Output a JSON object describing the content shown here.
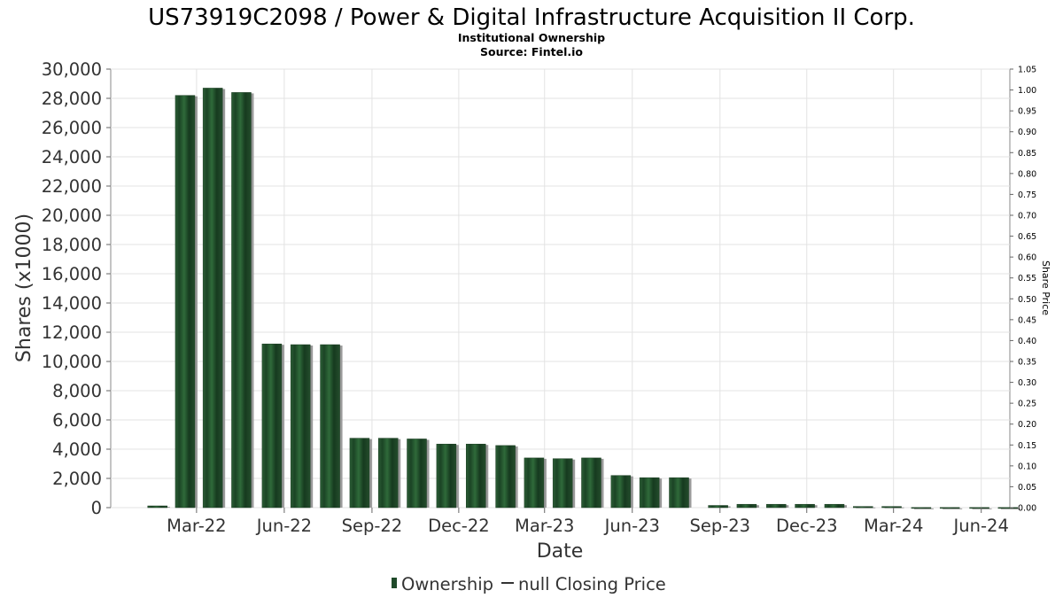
{
  "chart_data": {
    "type": "bar",
    "title": "US73919C2098 / Power & Digital Infrastructure Acquisition II Corp.",
    "subtitle_lines": [
      "Institutional Ownership",
      "Source: Fintel.io"
    ],
    "xlabel": "Date",
    "ylabel": "Shares (x1000)",
    "y2label": "Share Price",
    "x_range": [
      "2021-12-01",
      "2024-07-01"
    ],
    "ylim": [
      0,
      30000
    ],
    "y_ticks": [
      0,
      2000,
      4000,
      6000,
      8000,
      10000,
      12000,
      14000,
      16000,
      18000,
      20000,
      22000,
      24000,
      26000,
      28000,
      30000
    ],
    "y_tick_labels": [
      "0",
      "2,000",
      "4,000",
      "6,000",
      "8,000",
      "10,000",
      "12,000",
      "14,000",
      "16,000",
      "18,000",
      "20,000",
      "22,000",
      "24,000",
      "26,000",
      "28,000",
      "30,000"
    ],
    "y2lim": [
      0,
      1.05
    ],
    "y2_tick_labels": [
      "0.00",
      "0.05",
      "0.10",
      "0.15",
      "0.20",
      "0.25",
      "0.30",
      "0.35",
      "0.40",
      "0.45",
      "0.50",
      "0.55",
      "0.60",
      "0.65",
      "0.70",
      "0.75",
      "0.80",
      "0.85",
      "0.90",
      "0.95",
      "1.00",
      "1.05"
    ],
    "x_ticks": [
      {
        "date": "2022-03-01",
        "label": "Mar-22"
      },
      {
        "date": "2022-06-01",
        "label": "Jun-22"
      },
      {
        "date": "2022-09-01",
        "label": "Sep-22"
      },
      {
        "date": "2022-12-01",
        "label": "Dec-22"
      },
      {
        "date": "2023-03-01",
        "label": "Mar-23"
      },
      {
        "date": "2023-06-01",
        "label": "Jun-23"
      },
      {
        "date": "2023-09-01",
        "label": "Sep-23"
      },
      {
        "date": "2023-12-01",
        "label": "Dec-23"
      },
      {
        "date": "2024-03-01",
        "label": "Mar-24"
      },
      {
        "date": "2024-06-01",
        "label": "Jun-24"
      }
    ],
    "series": [
      {
        "name": "Ownership",
        "kind": "bar",
        "color": "#1f4a2a",
        "points": [
          {
            "date": "2022-01-19",
            "value": 120
          },
          {
            "date": "2022-02-17",
            "value": 28200
          },
          {
            "date": "2022-03-18",
            "value": 28700
          },
          {
            "date": "2022-04-17",
            "value": 28400
          },
          {
            "date": "2022-05-19",
            "value": 11200
          },
          {
            "date": "2022-06-18",
            "value": 11150
          },
          {
            "date": "2022-07-19",
            "value": 11150
          },
          {
            "date": "2022-08-19",
            "value": 4750
          },
          {
            "date": "2022-09-18",
            "value": 4750
          },
          {
            "date": "2022-10-18",
            "value": 4700
          },
          {
            "date": "2022-11-18",
            "value": 4350
          },
          {
            "date": "2022-12-19",
            "value": 4350
          },
          {
            "date": "2023-01-19",
            "value": 4250
          },
          {
            "date": "2023-02-18",
            "value": 3400
          },
          {
            "date": "2023-03-20",
            "value": 3350
          },
          {
            "date": "2023-04-19",
            "value": 3400
          },
          {
            "date": "2023-05-20",
            "value": 2200
          },
          {
            "date": "2023-06-19",
            "value": 2050
          },
          {
            "date": "2023-07-20",
            "value": 2050
          },
          {
            "date": "2023-08-30",
            "value": 150
          },
          {
            "date": "2023-09-29",
            "value": 230
          },
          {
            "date": "2023-10-30",
            "value": 230
          },
          {
            "date": "2023-11-29",
            "value": 230
          },
          {
            "date": "2023-12-30",
            "value": 230
          },
          {
            "date": "2024-01-29",
            "value": 80
          },
          {
            "date": "2024-02-28",
            "value": 80
          },
          {
            "date": "2024-03-30",
            "value": 10
          },
          {
            "date": "2024-04-29",
            "value": 10
          },
          {
            "date": "2024-05-30",
            "value": 10
          },
          {
            "date": "2024-06-29",
            "value": 10
          }
        ]
      },
      {
        "name": "null Closing Price",
        "kind": "line",
        "color": "#000000",
        "points": []
      }
    ],
    "grid": true,
    "legend_position": "bottom-center"
  }
}
